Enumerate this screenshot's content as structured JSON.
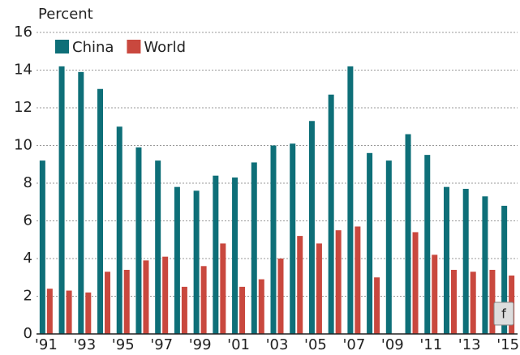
{
  "chart_data": {
    "type": "bar",
    "y_label": "Percent",
    "categories": [
      "'91",
      null,
      "'93",
      null,
      "'95",
      null,
      "'97",
      null,
      "'99",
      null,
      "'01",
      null,
      "'03",
      null,
      "'05",
      null,
      "'07",
      null,
      "'09",
      null,
      "'11",
      null,
      "'13",
      null,
      "'15"
    ],
    "series": [
      {
        "name": "China",
        "color": "#0e6f78",
        "values": [
          9.2,
          14.2,
          13.9,
          13.0,
          11.0,
          9.9,
          9.2,
          7.8,
          7.6,
          8.4,
          8.3,
          9.1,
          10.0,
          10.1,
          11.3,
          12.7,
          14.2,
          9.6,
          9.2,
          10.6,
          9.5,
          7.8,
          7.7,
          7.3,
          6.8
        ]
      },
      {
        "name": "World",
        "color": "#c9483e",
        "values": [
          2.4,
          2.3,
          2.2,
          3.3,
          3.4,
          3.9,
          4.1,
          2.5,
          3.6,
          4.8,
          2.5,
          2.9,
          4.0,
          5.2,
          4.8,
          5.5,
          5.7,
          3.0,
          0,
          5.4,
          4.2,
          3.4,
          3.3,
          3.4,
          3.1
        ]
      }
    ],
    "ylim": [
      0,
      16
    ],
    "yticks": [
      0,
      2,
      4,
      6,
      8,
      10,
      12,
      14,
      16
    ],
    "grid": true,
    "legend": "top-left"
  },
  "share_label": "f"
}
